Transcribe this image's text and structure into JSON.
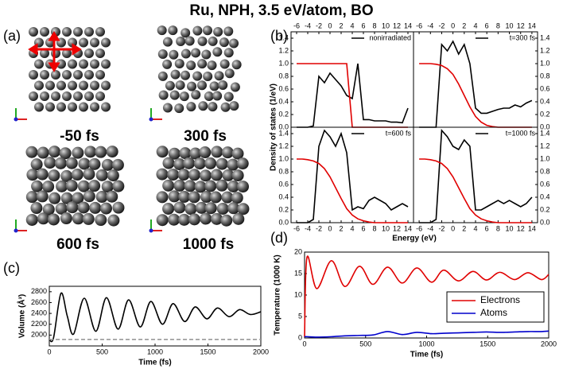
{
  "figure": {
    "title": "Ru, NPH, 3.5 eV/atom, BO",
    "panel_labels": [
      "(a)",
      "(b)",
      "(c)",
      "(d)"
    ],
    "snapshot_labels": [
      "-50 fs",
      "300 fs",
      "600 fs",
      "1000 fs"
    ],
    "dos_xlabel": "Energy (eV)",
    "dos_ylabel": "Density of states (1/eV)"
  },
  "chart_data": [
    {
      "type": "line",
      "x": [
        -6,
        -5,
        -4,
        -3,
        -2,
        -1,
        0,
        1,
        2,
        3,
        4,
        5,
        6,
        7,
        8,
        9,
        10,
        11,
        12,
        13,
        14
      ],
      "xlim": [
        -7,
        15
      ],
      "xticks": [
        -6,
        -4,
        -2,
        0,
        2,
        4,
        6,
        8,
        10,
        12,
        14
      ],
      "ylim": [
        0,
        1.5
      ],
      "yticks": [
        {
          "value": 0,
          "label": "0.0"
        },
        0.2,
        0.4,
        0.6,
        0.8,
        {
          "value": 1,
          "label": "1.0"
        },
        1.2,
        1.4
      ],
      "legend": "upper right",
      "series": [
        {
          "name": "nonirradiated",
          "color": "#000000",
          "values": [
            0,
            0,
            0,
            0.02,
            0.8,
            0.7,
            0.85,
            0.75,
            0.65,
            0.5,
            0.45,
            1.0,
            0.12,
            0.12,
            0.1,
            0.1,
            0.1,
            0.08,
            0.08,
            0.07,
            0.3
          ]
        },
        {
          "color": "#e00000",
          "values": [
            1,
            1,
            1,
            1,
            1,
            1,
            1,
            1,
            1,
            1,
            0,
            0,
            0,
            0,
            0,
            0,
            0,
            0,
            0,
            0,
            0
          ]
        }
      ]
    },
    {
      "type": "line",
      "x": [
        -6,
        -5,
        -4,
        -3,
        -2,
        -1,
        0,
        1,
        2,
        3,
        4,
        5,
        6,
        7,
        8,
        9,
        10,
        11,
        12,
        13,
        14
      ],
      "xlim": [
        -7,
        15
      ],
      "xticks": [
        -6,
        -4,
        -2,
        0,
        2,
        4,
        6,
        8,
        10,
        12,
        14
      ],
      "ylim": [
        0,
        1.5
      ],
      "yticks": [
        {
          "value": 0,
          "label": "0.0"
        },
        0.2,
        0.4,
        0.6,
        0.8,
        {
          "value": 1,
          "label": "1.0"
        },
        1.2,
        1.4
      ],
      "legend": "upper right",
      "series": [
        {
          "name": "t=300 fs",
          "color": "#000000",
          "values": [
            0,
            0,
            0,
            0,
            1.3,
            1.2,
            1.35,
            1.15,
            1.3,
            1.0,
            0.3,
            0.22,
            0.22,
            0.25,
            0.28,
            0.3,
            0.3,
            0.35,
            0.32,
            0.38,
            0.42
          ]
        },
        {
          "color": "#e00000",
          "values": [
            1,
            1,
            1,
            0.99,
            0.97,
            0.92,
            0.83,
            0.68,
            0.5,
            0.32,
            0.17,
            0.08,
            0.03,
            0.01,
            0,
            0,
            0,
            0,
            0,
            0,
            0
          ]
        }
      ]
    },
    {
      "type": "line",
      "x": [
        -6,
        -5,
        -4,
        -3,
        -2,
        -1,
        0,
        1,
        2,
        3,
        4,
        5,
        6,
        7,
        8,
        9,
        10,
        11,
        12,
        13,
        14
      ],
      "xlim": [
        -7,
        15
      ],
      "xticks": [
        -6,
        -4,
        -2,
        0,
        2,
        4,
        6,
        8,
        10,
        12,
        14
      ],
      "ylim": [
        0,
        1.5
      ],
      "yticks": [
        {
          "value": 0,
          "label": "0.0"
        },
        0.2,
        0.4,
        0.6,
        0.8,
        {
          "value": 1,
          "label": "1.0"
        },
        1.2,
        1.4
      ],
      "legend": "upper right",
      "series": [
        {
          "name": "t=600 fs",
          "color": "#000000",
          "values": [
            0,
            0,
            0,
            0.05,
            1.2,
            1.45,
            1.35,
            1.2,
            1.4,
            1.1,
            0.2,
            0.25,
            0.22,
            0.35,
            0.4,
            0.35,
            0.3,
            0.2,
            0.25,
            0.3,
            0.25
          ]
        },
        {
          "color": "#e00000",
          "values": [
            1,
            1,
            0.99,
            0.97,
            0.93,
            0.85,
            0.72,
            0.55,
            0.38,
            0.22,
            0.12,
            0.06,
            0.03,
            0.01,
            0,
            0,
            0,
            0,
            0,
            0,
            0
          ]
        }
      ]
    },
    {
      "type": "line",
      "x": [
        -6,
        -5,
        -4,
        -3,
        -2,
        -1,
        0,
        1,
        2,
        3,
        4,
        5,
        6,
        7,
        8,
        9,
        10,
        11,
        12,
        13,
        14
      ],
      "xlim": [
        -7,
        15
      ],
      "xticks": [
        -6,
        -4,
        -2,
        0,
        2,
        4,
        6,
        8,
        10,
        12,
        14
      ],
      "ylim": [
        0,
        1.5
      ],
      "yticks": [
        {
          "value": 0,
          "label": "0.0"
        },
        0.2,
        0.4,
        0.6,
        0.8,
        {
          "value": 1,
          "label": "1.0"
        },
        1.2,
        1.4
      ],
      "legend": "upper right",
      "series": [
        {
          "name": "t=1000 fs",
          "color": "#000000",
          "values": [
            0,
            0,
            0,
            0.05,
            1.45,
            1.35,
            1.2,
            1.15,
            1.3,
            1.2,
            0.2,
            0.2,
            0.25,
            0.3,
            0.35,
            0.3,
            0.35,
            0.3,
            0.25,
            0.3,
            0.4
          ]
        },
        {
          "color": "#e00000",
          "values": [
            1,
            1,
            0.99,
            0.97,
            0.93,
            0.85,
            0.72,
            0.55,
            0.38,
            0.22,
            0.12,
            0.06,
            0.03,
            0.01,
            0,
            0,
            0,
            0,
            0,
            0,
            0
          ]
        }
      ]
    },
    {
      "type": "line",
      "xlabel": "Time (fs)",
      "ylabel": "Volume (Å³)",
      "x": [
        0,
        40,
        110,
        170,
        230,
        330,
        440,
        540,
        650,
        750,
        860,
        960,
        1070,
        1170,
        1280,
        1380,
        1490,
        1590,
        1700,
        1800,
        1900,
        2000
      ],
      "xlim": [
        0,
        2000
      ],
      "xticks": [
        0,
        500,
        1000,
        1500,
        2000
      ],
      "ylim": [
        1800,
        2900
      ],
      "yticks": [
        2000,
        2200,
        2400,
        2600,
        2800
      ],
      "series": [
        {
          "color": "#000000",
          "values": [
            1920,
            1950,
            2770,
            2350,
            2020,
            2680,
            2070,
            2690,
            2110,
            2650,
            2150,
            2620,
            2200,
            2580,
            2250,
            2520,
            2300,
            2500,
            2340,
            2470,
            2380,
            2430
          ]
        },
        {
          "color": "#999999",
          "dash": true,
          "values": [
            1920,
            1920,
            1920,
            1920,
            1920,
            1920,
            1920,
            1920,
            1920,
            1920,
            1920,
            1920,
            1920,
            1920,
            1920,
            1920,
            1920,
            1920,
            1920,
            1920,
            1920,
            1920
          ]
        }
      ]
    },
    {
      "type": "line",
      "xlabel": "Time (fs)",
      "ylabel": "Temperature (1000 K)",
      "x": [
        0,
        20,
        100,
        220,
        330,
        450,
        560,
        680,
        800,
        920,
        1040,
        1140,
        1260,
        1380,
        1490,
        1600,
        1720,
        1830,
        1940,
        2000
      ],
      "xlim": [
        0,
        2000
      ],
      "xticks": [
        0,
        500,
        1000,
        1500,
        2000
      ],
      "ylim": [
        0,
        20
      ],
      "yticks": [
        0,
        5,
        10,
        15,
        20
      ],
      "legend": "center right",
      "series": [
        {
          "name": "Electrons",
          "color": "#e00000",
          "values": [
            0.3,
            18.8,
            11.5,
            18,
            12,
            16.7,
            12.5,
            16.5,
            12.8,
            16.3,
            13,
            15.8,
            13.3,
            15.5,
            13.5,
            15.3,
            13.6,
            15.2,
            13.6,
            14.8
          ]
        },
        {
          "name": "Atoms",
          "color": "#0000cc",
          "values": [
            0.3,
            0.3,
            0.2,
            0.3,
            0.5,
            0.6,
            0.7,
            1.5,
            0.8,
            1.3,
            1.0,
            1.1,
            1.2,
            1.3,
            1.4,
            1.3,
            1.4,
            1.5,
            1.5,
            1.6
          ]
        }
      ]
    }
  ]
}
